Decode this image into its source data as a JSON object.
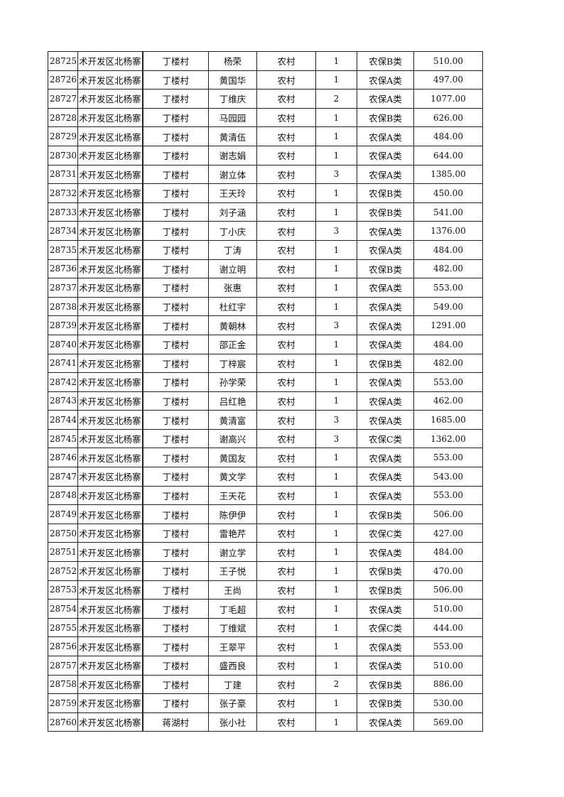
{
  "table": {
    "rows": [
      [
        "28725",
        "术开发区北杨寨",
        "丁楼村",
        "杨荣",
        "农村",
        "1",
        "农保B类",
        "510.00"
      ],
      [
        "28726",
        "术开发区北杨寨",
        "丁楼村",
        "黄国华",
        "农村",
        "1",
        "农保A类",
        "497.00"
      ],
      [
        "28727",
        "术开发区北杨寨",
        "丁楼村",
        "丁维庆",
        "农村",
        "2",
        "农保A类",
        "1077.00"
      ],
      [
        "28728",
        "术开发区北杨寨",
        "丁楼村",
        "马园园",
        "农村",
        "1",
        "农保B类",
        "626.00"
      ],
      [
        "28729",
        "术开发区北杨寨",
        "丁楼村",
        "黄清伍",
        "农村",
        "1",
        "农保A类",
        "484.00"
      ],
      [
        "28730",
        "术开发区北杨寨",
        "丁楼村",
        "谢志娟",
        "农村",
        "1",
        "农保A类",
        "644.00"
      ],
      [
        "28731",
        "术开发区北杨寨",
        "丁楼村",
        "谢立体",
        "农村",
        "3",
        "农保A类",
        "1385.00"
      ],
      [
        "28732",
        "术开发区北杨寨",
        "丁楼村",
        "王天玲",
        "农村",
        "1",
        "农保B类",
        "450.00"
      ],
      [
        "28733",
        "术开发区北杨寨",
        "丁楼村",
        "刘子涵",
        "农村",
        "1",
        "农保B类",
        "541.00"
      ],
      [
        "28734",
        "术开发区北杨寨",
        "丁楼村",
        "丁小庆",
        "农村",
        "3",
        "农保A类",
        "1376.00"
      ],
      [
        "28735",
        "术开发区北杨寨",
        "丁楼村",
        "丁涛",
        "农村",
        "1",
        "农保A类",
        "484.00"
      ],
      [
        "28736",
        "术开发区北杨寨",
        "丁楼村",
        "谢立明",
        "农村",
        "1",
        "农保B类",
        "482.00"
      ],
      [
        "28737",
        "术开发区北杨寨",
        "丁楼村",
        "张惠",
        "农村",
        "1",
        "农保A类",
        "553.00"
      ],
      [
        "28738",
        "术开发区北杨寨",
        "丁楼村",
        "杜红宇",
        "农村",
        "1",
        "农保A类",
        "549.00"
      ],
      [
        "28739",
        "术开发区北杨寨",
        "丁楼村",
        "黄朝林",
        "农村",
        "3",
        "农保A类",
        "1291.00"
      ],
      [
        "28740",
        "术开发区北杨寨",
        "丁楼村",
        "邵正金",
        "农村",
        "1",
        "农保A类",
        "484.00"
      ],
      [
        "28741",
        "术开发区北杨寨",
        "丁楼村",
        "丁梓宸",
        "农村",
        "1",
        "农保B类",
        "482.00"
      ],
      [
        "28742",
        "术开发区北杨寨",
        "丁楼村",
        "孙学荣",
        "农村",
        "1",
        "农保A类",
        "553.00"
      ],
      [
        "28743",
        "术开发区北杨寨",
        "丁楼村",
        "吕红艳",
        "农村",
        "1",
        "农保A类",
        "462.00"
      ],
      [
        "28744",
        "术开发区北杨寨",
        "丁楼村",
        "黄清富",
        "农村",
        "3",
        "农保A类",
        "1685.00"
      ],
      [
        "28745",
        "术开发区北杨寨",
        "丁楼村",
        "谢高兴",
        "农村",
        "3",
        "农保C类",
        "1362.00"
      ],
      [
        "28746",
        "术开发区北杨寨",
        "丁楼村",
        "黄国友",
        "农村",
        "1",
        "农保A类",
        "553.00"
      ],
      [
        "28747",
        "术开发区北杨寨",
        "丁楼村",
        "黄文学",
        "农村",
        "1",
        "农保A类",
        "543.00"
      ],
      [
        "28748",
        "术开发区北杨寨",
        "丁楼村",
        "王天花",
        "农村",
        "1",
        "农保A类",
        "553.00"
      ],
      [
        "28749",
        "术开发区北杨寨",
        "丁楼村",
        "陈伊伊",
        "农村",
        "1",
        "农保B类",
        "506.00"
      ],
      [
        "28750",
        "术开发区北杨寨",
        "丁楼村",
        "雷艳芹",
        "农村",
        "1",
        "农保C类",
        "427.00"
      ],
      [
        "28751",
        "术开发区北杨寨",
        "丁楼村",
        "谢立学",
        "农村",
        "1",
        "农保A类",
        "484.00"
      ],
      [
        "28752",
        "术开发区北杨寨",
        "丁楼村",
        "王子悦",
        "农村",
        "1",
        "农保B类",
        "470.00"
      ],
      [
        "28753",
        "术开发区北杨寨",
        "丁楼村",
        "王尚",
        "农村",
        "1",
        "农保B类",
        "506.00"
      ],
      [
        "28754",
        "术开发区北杨寨",
        "丁楼村",
        "丁毛超",
        "农村",
        "1",
        "农保A类",
        "510.00"
      ],
      [
        "28755",
        "术开发区北杨寨",
        "丁楼村",
        "丁维斌",
        "农村",
        "1",
        "农保C类",
        "444.00"
      ],
      [
        "28756",
        "术开发区北杨寨",
        "丁楼村",
        "王翠平",
        "农村",
        "1",
        "农保A类",
        "553.00"
      ],
      [
        "28757",
        "术开发区北杨寨",
        "丁楼村",
        "盛西良",
        "农村",
        "1",
        "农保A类",
        "510.00"
      ],
      [
        "28758",
        "术开发区北杨寨",
        "丁楼村",
        "丁建",
        "农村",
        "2",
        "农保B类",
        "886.00"
      ],
      [
        "28759",
        "术开发区北杨寨",
        "丁楼村",
        "张子豪",
        "农村",
        "1",
        "农保B类",
        "530.00"
      ],
      [
        "28760",
        "术开发区北杨寨",
        "蒋湖村",
        "张小社",
        "农村",
        "1",
        "农保A类",
        "569.00"
      ]
    ]
  }
}
